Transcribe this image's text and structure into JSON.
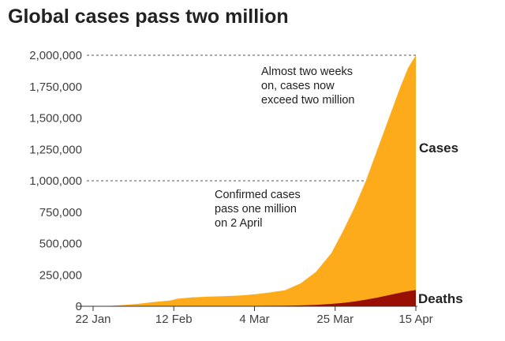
{
  "chart_data": {
    "type": "area",
    "title": "Global cases pass two million",
    "xlabel": "",
    "ylabel": "",
    "ylim": [
      0,
      2000000
    ],
    "yticks": [
      {
        "value": 0,
        "label": "0"
      },
      {
        "value": 250000,
        "label": "250,000"
      },
      {
        "value": 500000,
        "label": "500,000"
      },
      {
        "value": 750000,
        "label": "750,000"
      },
      {
        "value": 1000000,
        "label": "1,000,000"
      },
      {
        "value": 1250000,
        "label": "1,250,000"
      },
      {
        "value": 1500000,
        "label": "1,500,000"
      },
      {
        "value": 1750000,
        "label": "1,750,000"
      },
      {
        "value": 2000000,
        "label": "2,000,000"
      }
    ],
    "xticks": [
      "22 Jan",
      "12 Feb",
      "4 Mar",
      "25 Mar",
      "15 Apr"
    ],
    "x": [
      "22 Jan",
      "26 Jan",
      "30 Jan",
      "3 Feb",
      "7 Feb",
      "11 Feb",
      "13 Feb",
      "17 Feb",
      "21 Feb",
      "25 Feb",
      "29 Feb",
      "4 Mar",
      "8 Mar",
      "12 Mar",
      "16 Mar",
      "20 Mar",
      "24 Mar",
      "27 Mar",
      "30 Mar",
      "2 Apr",
      "5 Apr",
      "8 Apr",
      "11 Apr",
      "13 Apr",
      "15 Apr"
    ],
    "series": [
      {
        "name": "Cases",
        "color": "#fdab1b",
        "values": [
          555,
          2100,
          9900,
          20600,
          34400,
          45200,
          60400,
          71400,
          76800,
          80400,
          86000,
          95100,
          109800,
          128300,
          182400,
          273500,
          422600,
          596300,
          784800,
          1000000,
          1250000,
          1500000,
          1750000,
          1900000,
          2000000
        ]
      },
      {
        "name": "Deaths",
        "color": "#990f04",
        "values": [
          17,
          56,
          213,
          427,
          720,
          1020,
          1370,
          1770,
          2250,
          2700,
          2940,
          3280,
          3600,
          4720,
          7130,
          11300,
          18900,
          27000,
          37700,
          52900,
          69000,
          88500,
          108800,
          120000,
          130000
        ]
      }
    ],
    "reference_lines": [
      1000000,
      2000000
    ],
    "annotations": [
      {
        "lines": [
          "Almost two weeks",
          "on, cases now",
          "exceed two million"
        ],
        "x": "2 Apr",
        "y": 1950000
      },
      {
        "lines": [
          "Confirmed cases",
          "pass one million",
          "on 2 April"
        ],
        "x": "20 Mar",
        "y": 900000
      }
    ],
    "grid": false,
    "legend": "series labels at right end of areas"
  }
}
